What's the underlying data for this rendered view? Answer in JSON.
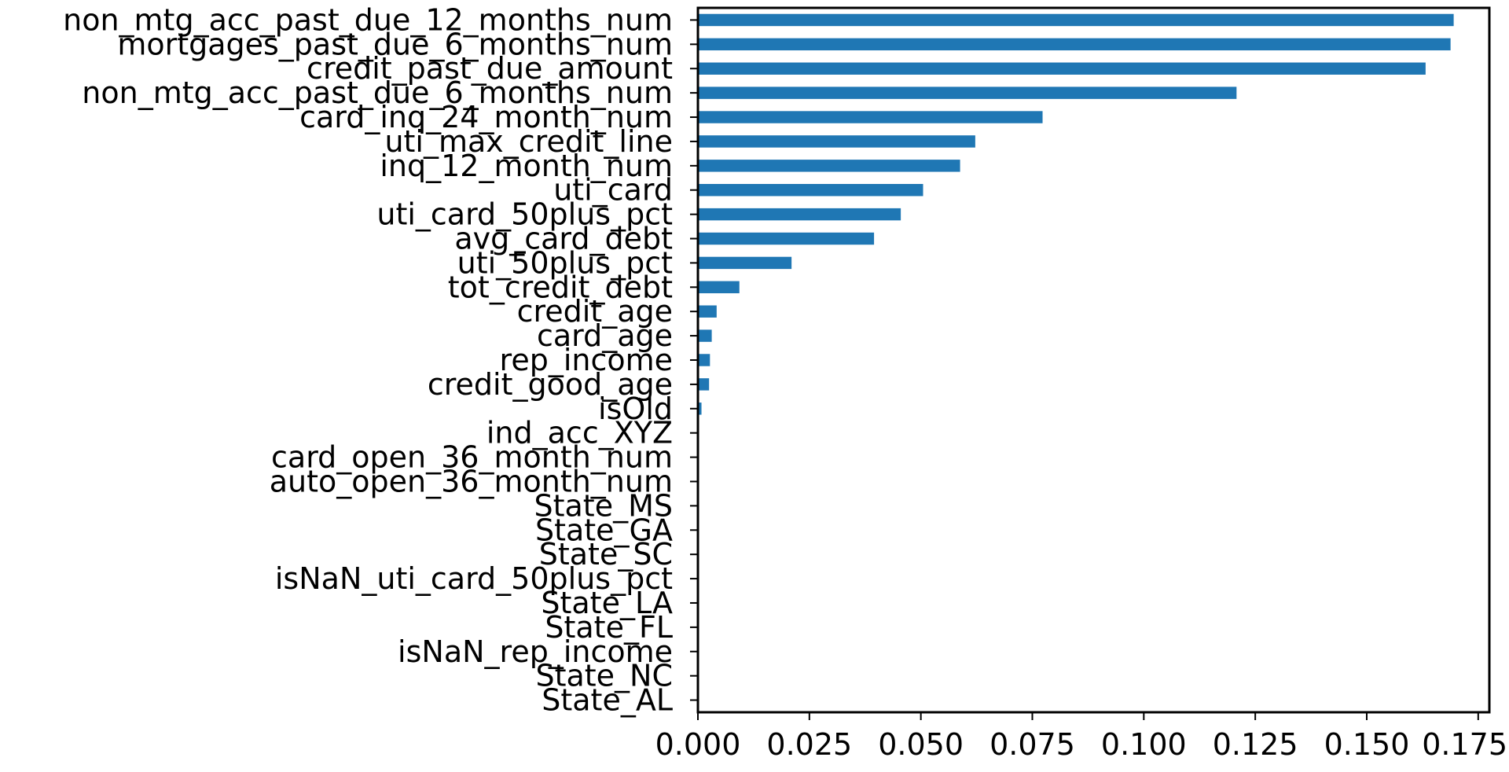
{
  "chart_data": {
    "type": "bar",
    "orientation": "horizontal",
    "categories": [
      "non_mtg_acc_past_due_12_months_num",
      "mortgages_past_due_6_months_num",
      "credit_past_due_amount",
      "non_mtg_acc_past_due_6_months_num",
      "card_inq_24_month_num",
      "uti_max_credit_line",
      "inq_12_month_num",
      "uti_card",
      "uti_card_50plus_pct",
      "avg_card_debt",
      "uti_50plus_pct",
      "tot_credit_debt",
      "credit_age",
      "card_age",
      "rep_income",
      "credit_good_age",
      "isOld",
      "ind_acc_XYZ",
      "card_open_36_month_num",
      "auto_open_36_month_num",
      "State_MS",
      "State_GA",
      "State_SC",
      "isNaN_uti_card_50plus_pct",
      "State_LA",
      "State_FL",
      "isNaN_rep_income",
      "State_NC",
      "State_AL"
    ],
    "values": [
      0.1695,
      0.1688,
      0.1632,
      0.1208,
      0.0773,
      0.0622,
      0.0588,
      0.0505,
      0.0455,
      0.0395,
      0.021,
      0.0093,
      0.0042,
      0.0031,
      0.0027,
      0.0025,
      0.0008,
      0.0,
      0.0,
      0.0,
      0.0,
      0.0,
      0.0,
      0.0,
      0.0,
      0.0,
      0.0,
      0.0,
      0.0
    ],
    "xticks": [
      "0.000",
      "0.025",
      "0.050",
      "0.075",
      "0.100",
      "0.125",
      "0.150",
      "0.175"
    ],
    "xlim": [
      0.0,
      0.1775
    ],
    "title": "",
    "xlabel": "",
    "ylabel": "",
    "bar_color": "#1f77b4",
    "grid": false,
    "legend": "none"
  }
}
